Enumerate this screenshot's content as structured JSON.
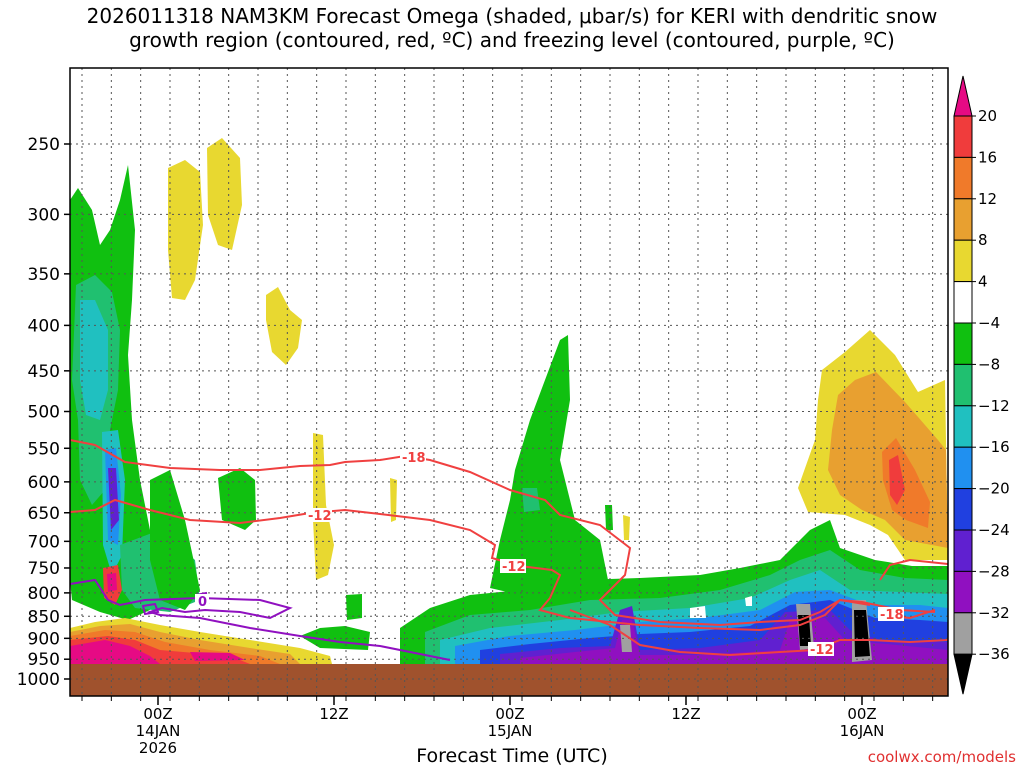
{
  "chart_data": {
    "type": "heatmap",
    "title_line1": "2026011318 NAM3KM Forecast Omega (shaded, μbar/s) for KERI with dendritic snow",
    "title_line2": "growth region (contoured, red, ºC) and freezing level (contoured, purple, ºC)",
    "xlabel": "Forecast Time (UTC)",
    "x_ticks": [
      {
        "label": "00Z",
        "sub1": "14JAN",
        "sub2": "2026"
      },
      {
        "label": "12Z",
        "sub1": "",
        "sub2": ""
      },
      {
        "label": "00Z",
        "sub1": "15JAN",
        "sub2": ""
      },
      {
        "label": "12Z",
        "sub1": "",
        "sub2": ""
      },
      {
        "label": "00Z",
        "sub1": "16JAN",
        "sub2": ""
      }
    ],
    "y_ticks": [
      "250",
      "300",
      "350",
      "400",
      "450",
      "500",
      "550",
      "600",
      "650",
      "700",
      "750",
      "800",
      "850",
      "900",
      "950",
      "1000"
    ],
    "y_scale": "log-pressure",
    "colorbar_labels": [
      "20",
      "16",
      "12",
      "8",
      "4",
      "−4",
      "−8",
      "−12",
      "−16",
      "−20",
      "−24",
      "−28",
      "−32",
      "−36"
    ],
    "colorbar_colors": [
      "#e60a84",
      "#f03c3c",
      "#f07a2a",
      "#e8a030",
      "#e8d830",
      "#ffffff",
      "#10c010",
      "#20c070",
      "#20c0c0",
      "#2090f0",
      "#2040e0",
      "#6020d0",
      "#9010c0",
      "#a0a0a0",
      "#000000"
    ],
    "contour_labels": {
      "red": [
        "-18",
        "-12",
        "-12",
        "-18",
        "-12"
      ],
      "purple": [
        "0"
      ]
    },
    "grid": true,
    "credit": "coolwx.com/models"
  }
}
